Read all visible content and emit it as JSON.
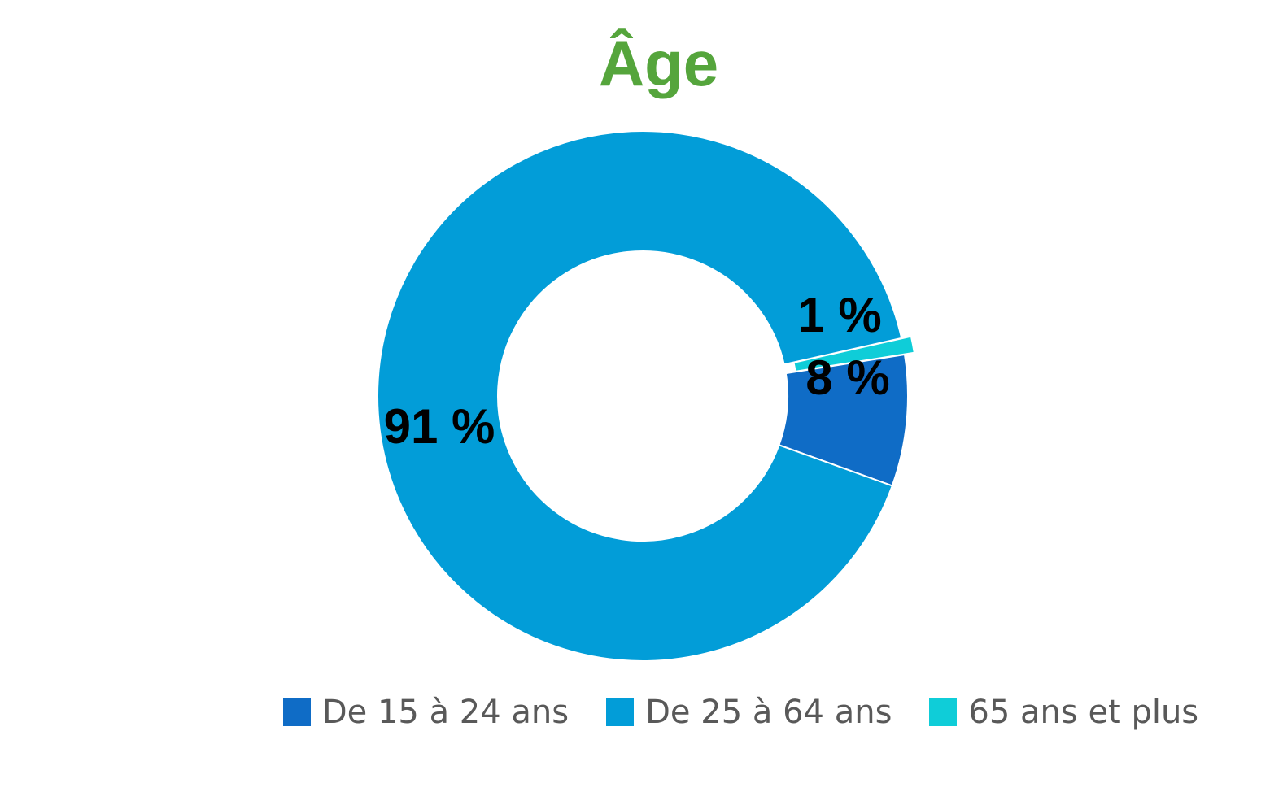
{
  "chart_data": {
    "type": "pie",
    "variant": "donut",
    "title": "Âge",
    "title_color": "#55A53C",
    "categories": [
      "De 15 à 24 ans",
      "De 25 à 64 ans",
      "65 ans et plus"
    ],
    "values": [
      8,
      91,
      1
    ],
    "data_labels": [
      "8 %",
      "91 %",
      "1 %"
    ],
    "colors": [
      "#0F6CC6",
      "#029DD8",
      "#0FCDD8"
    ],
    "exploded_slices": [
      "65 ans et plus"
    ],
    "legend_position": "bottom"
  }
}
